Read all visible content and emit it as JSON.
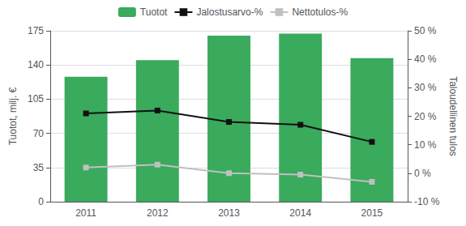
{
  "chart_data": {
    "type": "bar",
    "categories": [
      "2011",
      "2012",
      "2013",
      "2014",
      "2015"
    ],
    "series": [
      {
        "name": "Tuotot",
        "type": "bar",
        "color": "#3aaa5c",
        "values": [
          128,
          145,
          170,
          172,
          147
        ]
      },
      {
        "name": "Jalostusarvo-%",
        "type": "line",
        "color": "#111111",
        "marker": "square",
        "axis": "y2",
        "values": [
          21,
          22,
          18,
          17,
          11
        ]
      },
      {
        "name": "Nettotulos-%",
        "type": "line",
        "color": "#c0c0c0",
        "marker": "square",
        "axis": "y2",
        "values": [
          2,
          3,
          0,
          -0.5,
          -3
        ]
      }
    ],
    "ylabel": "Tuotot, milj. €",
    "y2label": "Taloudellinen tulos",
    "ylim": [
      0,
      175
    ],
    "yticks": [
      0,
      35,
      70,
      105,
      140,
      175
    ],
    "y2lim": [
      -10,
      50
    ],
    "y2ticks": [
      {
        "value": -10,
        "label": "-10 %"
      },
      {
        "value": 0,
        "label": "0 %"
      },
      {
        "value": 10,
        "label": "10 %"
      },
      {
        "value": 20,
        "label": "20 %"
      },
      {
        "value": 30,
        "label": "30 %"
      },
      {
        "value": 40,
        "label": "40 %"
      },
      {
        "value": 50,
        "label": "50 %"
      }
    ],
    "grid": true,
    "legend": "top"
  }
}
